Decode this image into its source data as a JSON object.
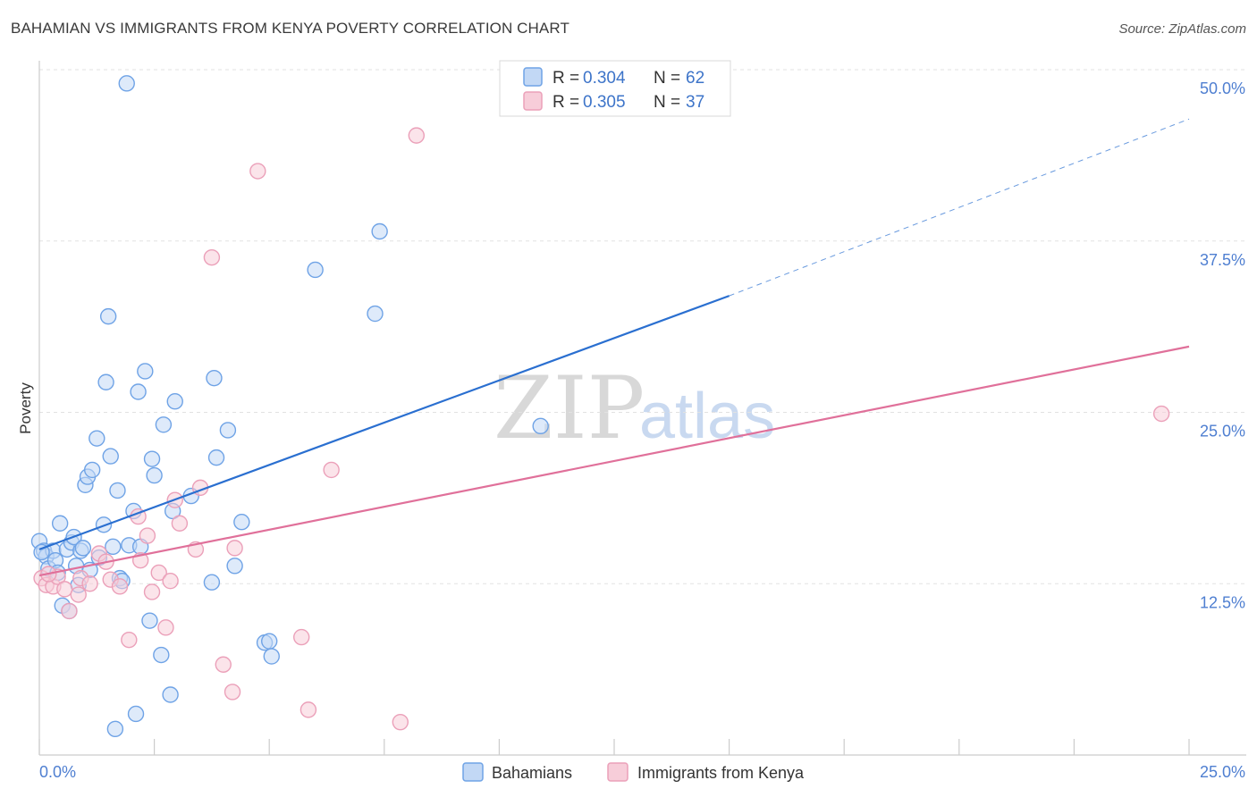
{
  "title": "BAHAMIAN VS IMMIGRANTS FROM KENYA POVERTY CORRELATION CHART",
  "source": "Source: ZipAtlas.com",
  "colors": {
    "blue": "#6fa3e6",
    "blue_fill": "#c2d8f5",
    "blue_line": "#2a6fd0",
    "pink": "#eba0b9",
    "pink_fill": "#f7cdd9",
    "pink_line": "#e0709a",
    "tick_text": "#4f7fd1"
  },
  "watermark": {
    "zip": "ZIP",
    "atlas": "atlas"
  },
  "legend": {
    "rows": [
      {
        "r_label": "R = ",
        "r_value": "0.304",
        "n_label": "N = ",
        "n_value": "62"
      },
      {
        "r_label": "R = ",
        "r_value": "0.305",
        "n_label": "N = ",
        "n_value": "37"
      }
    ]
  },
  "chart_data": {
    "type": "scatter",
    "title": "BAHAMIAN VS IMMIGRANTS FROM KENYA POVERTY CORRELATION CHART",
    "xlabel": "",
    "ylabel": "Poverty",
    "xlim": [
      0,
      25
    ],
    "ylim": [
      0,
      50
    ],
    "x_tick_labels": {
      "min": "0.0%",
      "max": "25.0%"
    },
    "y_ticks": [
      {
        "value": 12.5,
        "label": "12.5%"
      },
      {
        "value": 25.0,
        "label": "25.0%"
      },
      {
        "value": 37.5,
        "label": "37.5%"
      },
      {
        "value": 50.0,
        "label": "50.0%"
      }
    ],
    "series": [
      {
        "name": "Bahamians",
        "color": "#6fa3e6",
        "trend": {
          "x0": 0,
          "y0": 15.0,
          "x1": 15,
          "y1": 33.5,
          "dash_to_x": 25,
          "dash_to_y": 46.4
        },
        "points": [
          [
            0.0,
            15.6
          ],
          [
            0.1,
            14.9
          ],
          [
            0.15,
            14.5
          ],
          [
            0.2,
            13.6
          ],
          [
            0.3,
            14.9
          ],
          [
            0.35,
            14.2
          ],
          [
            0.4,
            13.3
          ],
          [
            0.45,
            16.9
          ],
          [
            0.5,
            10.9
          ],
          [
            0.6,
            15.0
          ],
          [
            0.65,
            10.5
          ],
          [
            0.7,
            15.5
          ],
          [
            0.75,
            15.9
          ],
          [
            0.8,
            13.8
          ],
          [
            0.85,
            12.4
          ],
          [
            0.9,
            14.9
          ],
          [
            0.95,
            15.1
          ],
          [
            1.0,
            19.7
          ],
          [
            1.05,
            20.3
          ],
          [
            1.1,
            13.5
          ],
          [
            1.15,
            20.8
          ],
          [
            1.25,
            23.1
          ],
          [
            1.3,
            14.4
          ],
          [
            1.4,
            16.8
          ],
          [
            1.45,
            27.2
          ],
          [
            1.5,
            32.0
          ],
          [
            1.55,
            21.8
          ],
          [
            1.6,
            15.2
          ],
          [
            1.65,
            1.9
          ],
          [
            1.7,
            19.3
          ],
          [
            1.75,
            12.9
          ],
          [
            1.8,
            12.7
          ],
          [
            1.9,
            49.0
          ],
          [
            1.95,
            15.3
          ],
          [
            2.05,
            17.8
          ],
          [
            2.1,
            3.0
          ],
          [
            2.15,
            26.5
          ],
          [
            2.2,
            15.2
          ],
          [
            2.3,
            28.0
          ],
          [
            2.4,
            9.8
          ],
          [
            2.45,
            21.6
          ],
          [
            2.5,
            20.4
          ],
          [
            2.65,
            7.3
          ],
          [
            2.7,
            24.1
          ],
          [
            2.85,
            4.4
          ],
          [
            2.9,
            17.8
          ],
          [
            2.95,
            25.8
          ],
          [
            3.3,
            18.9
          ],
          [
            3.75,
            12.6
          ],
          [
            3.8,
            27.5
          ],
          [
            3.85,
            21.7
          ],
          [
            4.1,
            23.7
          ],
          [
            4.25,
            13.8
          ],
          [
            4.4,
            17.0
          ],
          [
            4.9,
            8.2
          ],
          [
            5.0,
            8.3
          ],
          [
            5.05,
            7.2
          ],
          [
            6.0,
            35.4
          ],
          [
            7.3,
            32.2
          ],
          [
            7.4,
            38.2
          ],
          [
            10.9,
            24.0
          ],
          [
            0.05,
            14.8
          ]
        ]
      },
      {
        "name": "Immigrants from Kenya",
        "color": "#eba0b9",
        "trend": {
          "x0": 0,
          "y0": 13.1,
          "x1": 25,
          "y1": 29.8
        },
        "points": [
          [
            0.05,
            12.9
          ],
          [
            0.15,
            12.4
          ],
          [
            0.3,
            12.3
          ],
          [
            0.4,
            13.0
          ],
          [
            0.55,
            12.1
          ],
          [
            0.65,
            10.5
          ],
          [
            0.85,
            11.7
          ],
          [
            0.9,
            12.9
          ],
          [
            1.1,
            12.5
          ],
          [
            1.3,
            14.7
          ],
          [
            1.45,
            14.1
          ],
          [
            1.55,
            12.8
          ],
          [
            1.75,
            12.3
          ],
          [
            1.95,
            8.4
          ],
          [
            2.15,
            17.4
          ],
          [
            2.2,
            14.2
          ],
          [
            2.35,
            16.0
          ],
          [
            2.45,
            11.9
          ],
          [
            2.6,
            13.3
          ],
          [
            2.75,
            9.3
          ],
          [
            2.85,
            12.7
          ],
          [
            2.95,
            18.6
          ],
          [
            3.05,
            16.9
          ],
          [
            3.4,
            15.0
          ],
          [
            3.5,
            19.5
          ],
          [
            3.75,
            36.3
          ],
          [
            4.0,
            6.6
          ],
          [
            4.2,
            4.6
          ],
          [
            4.25,
            15.1
          ],
          [
            4.75,
            42.6
          ],
          [
            5.7,
            8.6
          ],
          [
            5.85,
            3.3
          ],
          [
            6.35,
            20.8
          ],
          [
            7.85,
            2.4
          ],
          [
            8.2,
            45.2
          ],
          [
            24.4,
            24.9
          ],
          [
            0.2,
            13.2
          ]
        ]
      }
    ]
  }
}
